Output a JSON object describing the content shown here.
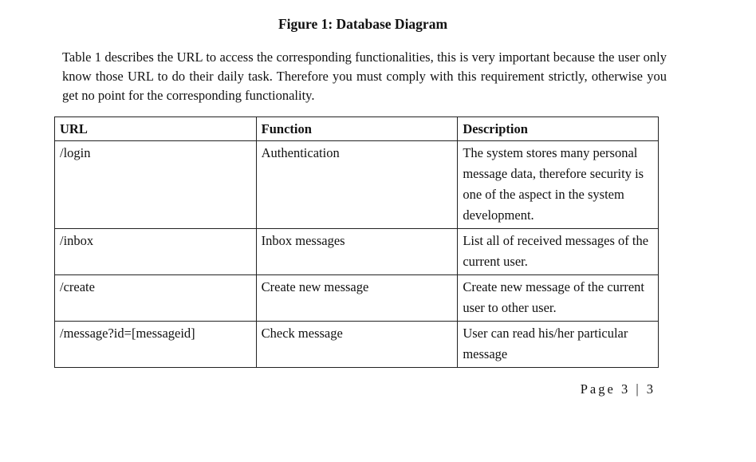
{
  "figure_caption": "Figure 1: Database Diagram",
  "paragraph": "Table 1 describes the URL to access the corresponding functionalities, this is very important because the user only know those URL to do their daily task. Therefore you must comply with this requirement strictly, otherwise you get no point for the corresponding functionality.",
  "table": {
    "headers": [
      "URL",
      "Function",
      "Description"
    ],
    "rows": [
      {
        "url": "/login",
        "function": "Authentication",
        "description": "The system stores many personal message data, therefore security is one of the aspect in the system development."
      },
      {
        "url": "/inbox",
        "function": "Inbox messages",
        "description": "List all of received messages of the current user."
      },
      {
        "url": "/create",
        "function": "Create new message",
        "description": "Create new message of the current user to other user."
      },
      {
        "url": "/message?id=[messageid]",
        "function": "Check message",
        "description": "User can read his/her particular message"
      }
    ]
  },
  "page_number": {
    "label": "Page",
    "value": "3 | 3"
  }
}
